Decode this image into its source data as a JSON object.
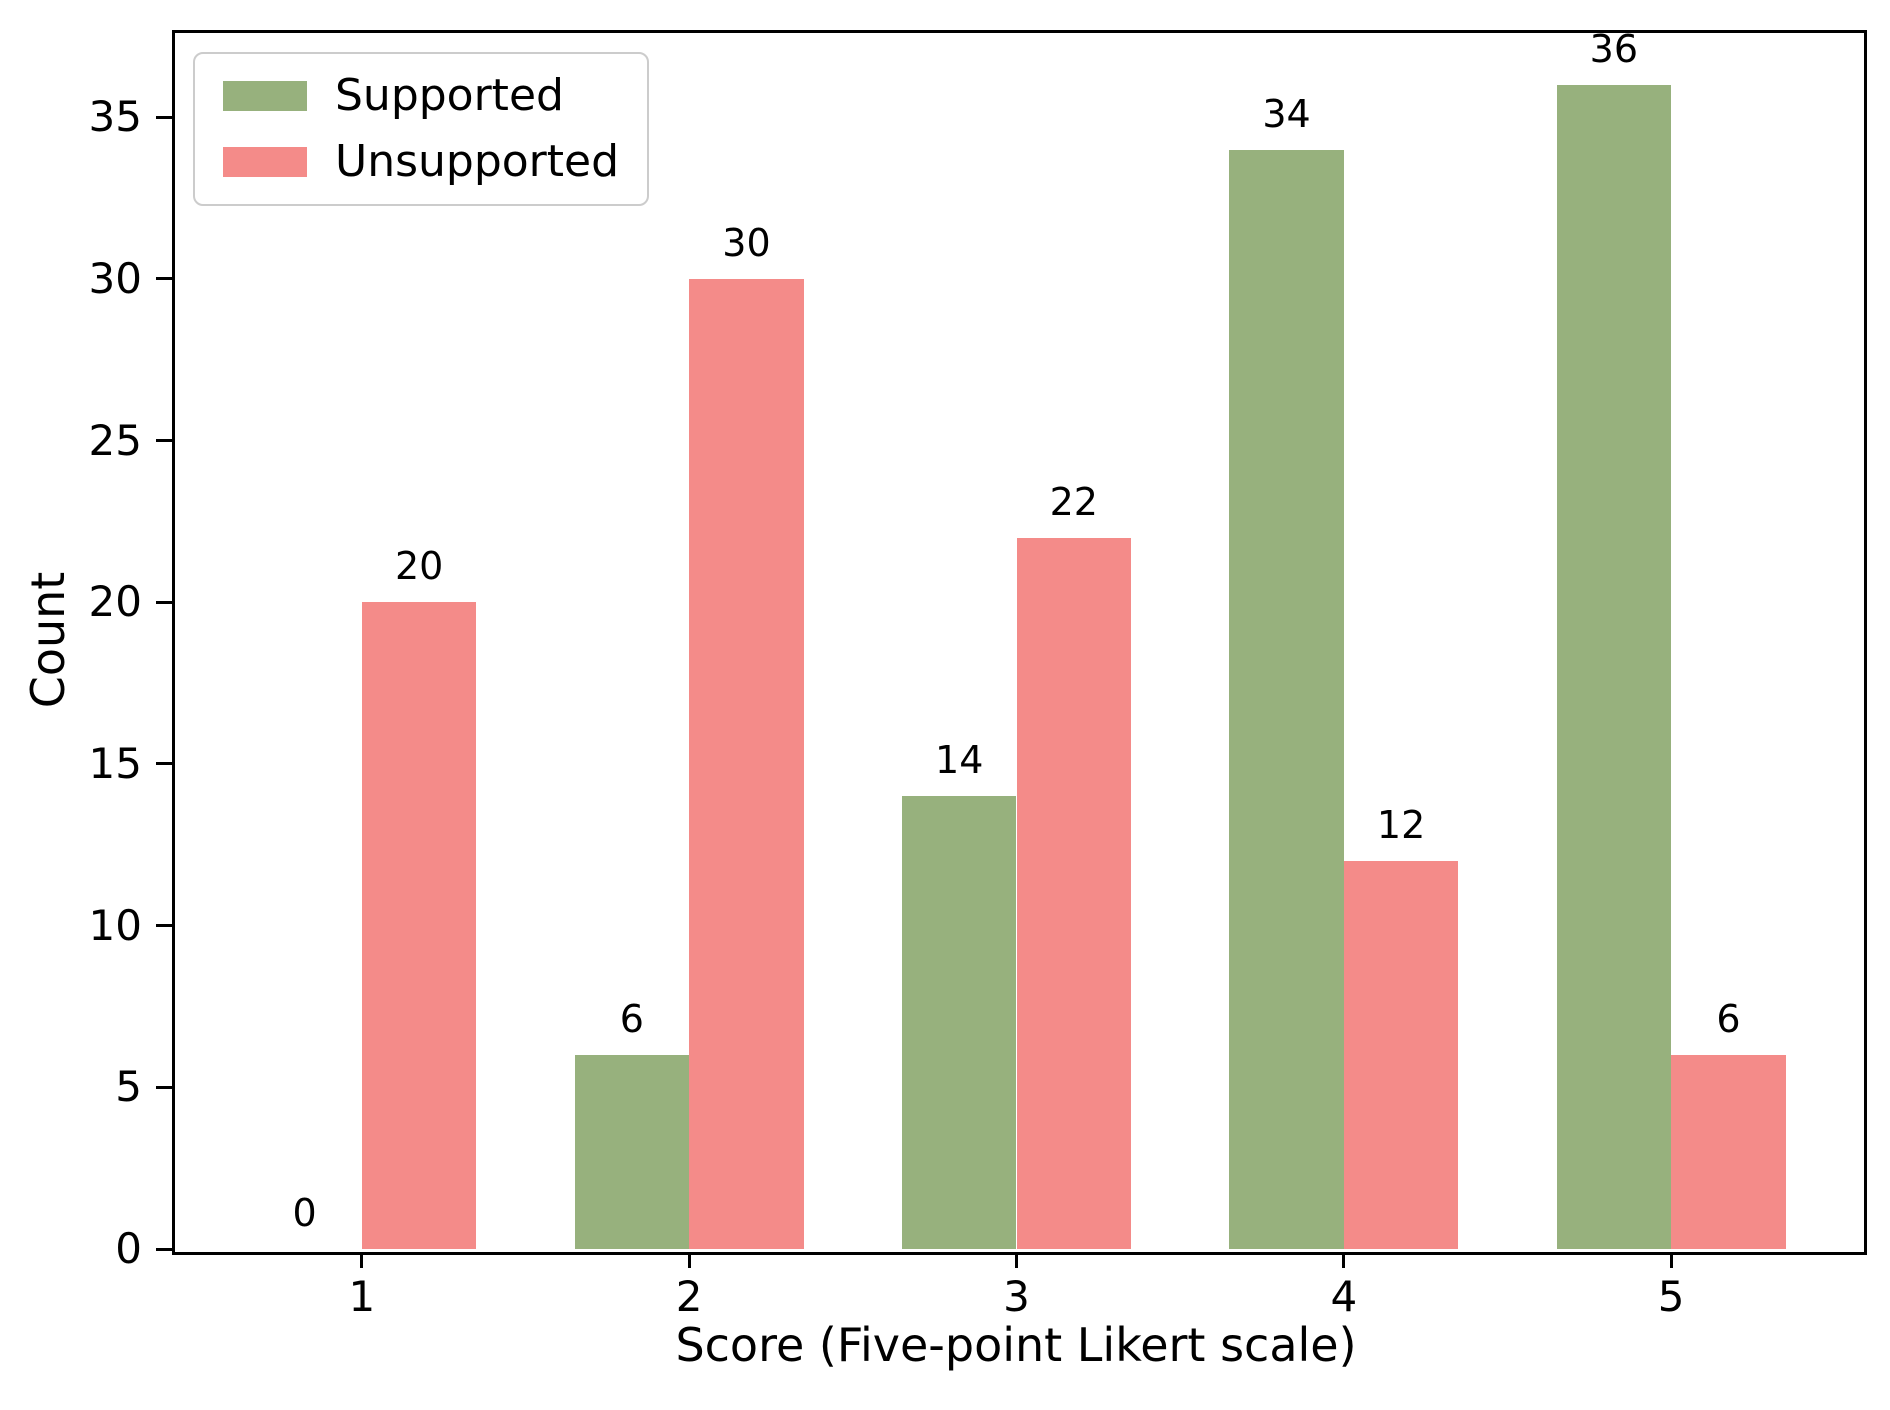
{
  "figure": {
    "background": "#ffffff",
    "spine_color": "#000000"
  },
  "chart_data": {
    "type": "bar",
    "title": "",
    "xlabel": "Score (Five-point Likert scale)",
    "ylabel": "Count",
    "categories": [
      "1",
      "2",
      "3",
      "4",
      "5"
    ],
    "series": [
      {
        "name": "Supported",
        "color": "#97b17d",
        "values": [
          0,
          6,
          14,
          34,
          36
        ]
      },
      {
        "name": "Unsupported",
        "color": "#f48b89",
        "values": [
          20,
          30,
          22,
          12,
          6
        ]
      }
    ],
    "bar_value_labels": [
      [
        "0",
        "6",
        "14",
        "34",
        "36"
      ],
      [
        "20",
        "30",
        "22",
        "12",
        "6"
      ]
    ],
    "yticks": [
      "0",
      "5",
      "10",
      "15",
      "20",
      "25",
      "30",
      "35"
    ],
    "ylim": [
      0,
      37.7
    ],
    "xlim": [
      0.42,
      5.58
    ],
    "bar_width": 0.35,
    "grid": false,
    "legend_position": "upper-left"
  }
}
